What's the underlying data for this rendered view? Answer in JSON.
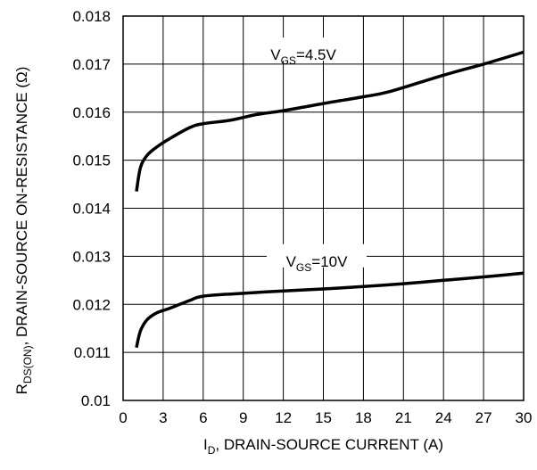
{
  "chart_data": {
    "type": "line",
    "xlabel": {
      "main": "I",
      "sub": "D",
      "rest": ", DRAIN-SOURCE CURRENT (A)"
    },
    "ylabel": {
      "main": "R",
      "sub": "DS(ON)",
      "rest": ", DRAIN-SOURCE ON-RESISTANCE (Ω)"
    },
    "xlim": [
      0,
      30
    ],
    "ylim": [
      0.01,
      0.018
    ],
    "xticks": [
      "0",
      "3",
      "6",
      "9",
      "12",
      "15",
      "18",
      "21",
      "24",
      "27",
      "30"
    ],
    "yticks": [
      "0.01",
      "0.011",
      "0.012",
      "0.013",
      "0.014",
      "0.015",
      "0.016",
      "0.017",
      "0.018"
    ],
    "grid": true,
    "series": [
      {
        "name": "VGS=4.5V",
        "label": {
          "main": "V",
          "sub": "GS",
          "rest": "=4.5V"
        },
        "x": [
          1,
          1.3,
          1.8,
          2.5,
          3.5,
          5,
          6,
          8,
          10,
          12,
          15,
          18,
          20,
          24,
          27,
          30
        ],
        "y": [
          0.01435,
          0.01485,
          0.0151,
          0.01527,
          0.01545,
          0.01568,
          0.01576,
          0.01583,
          0.01595,
          0.01603,
          0.01618,
          0.01632,
          0.01643,
          0.01677,
          0.017,
          0.01725
        ]
      },
      {
        "name": "VGS=10V",
        "label": {
          "main": "V",
          "sub": "GS",
          "rest": "=10V"
        },
        "x": [
          1,
          1.3,
          1.8,
          2.5,
          3.5,
          5,
          6,
          9,
          12,
          15,
          18,
          21,
          24,
          27,
          30
        ],
        "y": [
          0.0111,
          0.01145,
          0.01168,
          0.01182,
          0.01192,
          0.01208,
          0.01217,
          0.01223,
          0.01228,
          0.01232,
          0.01237,
          0.01243,
          0.0125,
          0.01257,
          0.01265
        ]
      }
    ]
  }
}
